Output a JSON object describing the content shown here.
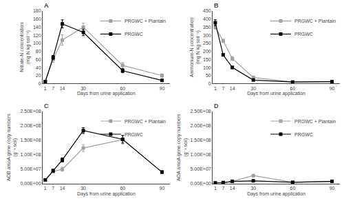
{
  "chart_data": [
    {
      "type": "line",
      "title": "A",
      "x_label": "Days from urine application",
      "y_label": "Nitrate-N concentration\n(mg N kg soil⁻¹)",
      "x": [
        1,
        7,
        14,
        30,
        60,
        90
      ],
      "xlim": [
        -1,
        96
      ],
      "xticks": [
        1,
        7,
        14,
        30,
        60,
        90
      ],
      "ylim": [
        0,
        180
      ],
      "yticks": [
        0,
        20,
        40,
        60,
        80,
        100,
        120,
        140,
        160,
        180
      ],
      "grid": false,
      "legend": "upper right",
      "series": [
        {
          "name": "PRGWC + Plantain",
          "color": "#a0a0a0",
          "marker": "square",
          "values": [
            5,
            60,
            108,
            140,
            45,
            20
          ],
          "error": [
            2,
            7,
            13,
            10,
            7,
            4
          ]
        },
        {
          "name": "PRGWC",
          "color": "#000000",
          "marker": "square",
          "values": [
            5,
            65,
            148,
            127,
            32,
            8
          ],
          "error": [
            1,
            5,
            10,
            8,
            5,
            2
          ]
        }
      ]
    },
    {
      "type": "line",
      "title": "B",
      "x_label": "Days from urine application",
      "y_label": "Ammonium-N concentration\n(mg N kg soil⁻¹)",
      "x": [
        1,
        7,
        14,
        30,
        60,
        90
      ],
      "xlim": [
        -1,
        96
      ],
      "xticks": [
        1,
        7,
        14,
        30,
        60,
        90
      ],
      "ylim": [
        0,
        450
      ],
      "yticks": [
        0,
        50,
        100,
        150,
        200,
        250,
        300,
        350,
        400,
        450
      ],
      "grid": false,
      "legend": "upper right",
      "series": [
        {
          "name": "PRGWC + Plantain",
          "color": "#a0a0a0",
          "marker": "square",
          "values": [
            350,
            265,
            155,
            38,
            10,
            12
          ],
          "error": [
            12,
            10,
            12,
            6,
            3,
            2
          ]
        },
        {
          "name": "PRGWC",
          "color": "#000000",
          "marker": "square",
          "values": [
            378,
            178,
            100,
            22,
            10,
            12
          ],
          "error": [
            18,
            7,
            8,
            4,
            2,
            2
          ]
        }
      ]
    },
    {
      "type": "line",
      "title": "C",
      "x_label": "Days from urine application",
      "y_label": "AOB amoA gene copy numbers\n(g⁻¹ soil)",
      "x": [
        1,
        7,
        14,
        30,
        60,
        90
      ],
      "xlim": [
        -1,
        96
      ],
      "xticks": [
        1,
        7,
        14,
        30,
        60,
        90
      ],
      "ylim": [
        0,
        250000000.0
      ],
      "yticks": [
        {
          "value": 0,
          "label": "0.00E+00"
        },
        {
          "value": 50000000.0,
          "label": "5.00E+07"
        },
        {
          "value": 100000000.0,
          "label": "1.00E+08"
        },
        {
          "value": 150000000.0,
          "label": "1.50E+08"
        },
        {
          "value": 200000000.0,
          "label": "2.00E+08"
        },
        {
          "value": 250000000.0,
          "label": "2.50E+08"
        }
      ],
      "grid": false,
      "legend": "upper right",
      "series": [
        {
          "name": "PRGWC + Plantain",
          "color": "#a0a0a0",
          "marker": "square",
          "values": [
            13000000.0,
            42000000.0,
            50000000.0,
            123000000.0,
            152000000.0,
            40000000.0
          ],
          "error": [
            3000000.0,
            4000000.0,
            7000000.0,
            12000000.0,
            15000000.0,
            5000000.0
          ]
        },
        {
          "name": "PRGWC",
          "color": "#000000",
          "marker": "square",
          "values": [
            13000000.0,
            45000000.0,
            82000000.0,
            183000000.0,
            153000000.0,
            40000000.0
          ],
          "error": [
            2000000.0,
            5000000.0,
            7000000.0,
            10000000.0,
            13000000.0,
            4000000.0
          ]
        }
      ]
    },
    {
      "type": "line",
      "title": "D",
      "x_label": "Days from urine application",
      "y_label": "AOA amoA gene copy numbers\n(g⁻¹ soil)",
      "x": [
        1,
        7,
        14,
        30,
        60,
        90
      ],
      "xlim": [
        -1,
        96
      ],
      "xticks": [
        1,
        7,
        14,
        30,
        60,
        90
      ],
      "ylim": [
        0,
        250000000.0
      ],
      "yticks": [
        {
          "value": 0,
          "label": "0.00E+00"
        },
        {
          "value": 50000000.0,
          "label": "5.00E+07"
        },
        {
          "value": 100000000.0,
          "label": "1.00E+08"
        },
        {
          "value": 150000000.0,
          "label": "1.50E+08"
        },
        {
          "value": 200000000.0,
          "label": "2.00E+08"
        },
        {
          "value": 250000000.0,
          "label": "2.50E+08"
        }
      ],
      "grid": false,
      "legend": "upper right",
      "series": [
        {
          "name": "PRGWC + Plantain",
          "color": "#a0a0a0",
          "marker": "square",
          "values": [
            3000000.0,
            3000000.0,
            8000000.0,
            28000000.0,
            5000000.0,
            8000000.0
          ],
          "error": [
            1000000.0,
            1000000.0,
            2000000.0,
            4000000.0,
            1000000.0,
            2000000.0
          ]
        },
        {
          "name": "PRGWC",
          "color": "#000000",
          "marker": "square",
          "values": [
            3000000.0,
            4000000.0,
            8000000.0,
            10000000.0,
            5000000.0,
            8000000.0
          ],
          "error": [
            1000000.0,
            1000000.0,
            2000000.0,
            2000000.0,
            1000000.0,
            2000000.0
          ]
        }
      ]
    }
  ]
}
